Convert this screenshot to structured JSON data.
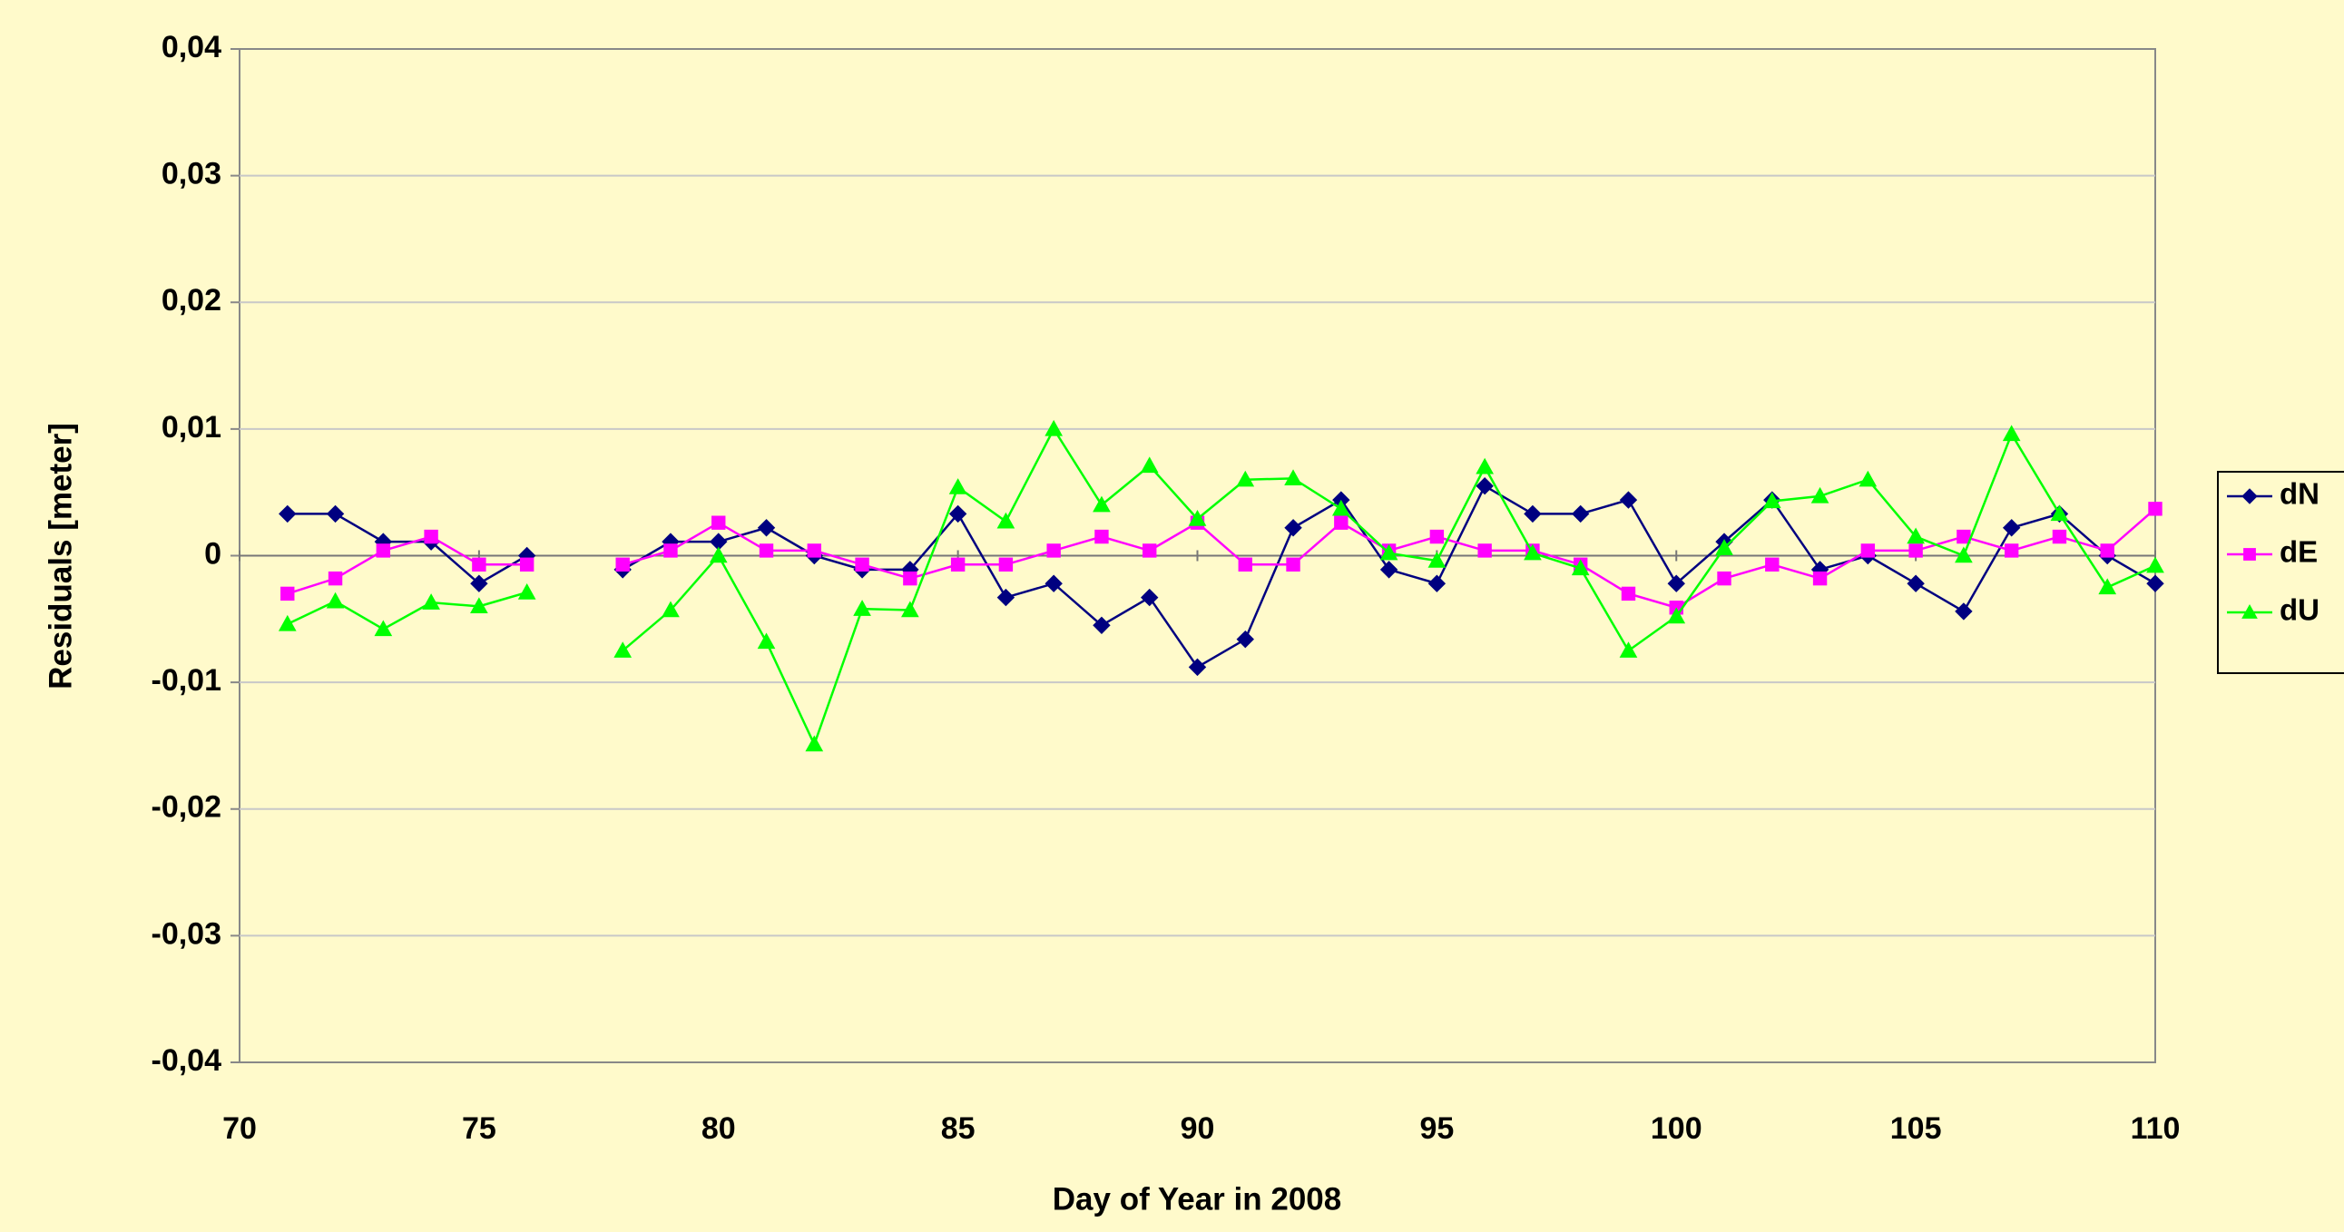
{
  "chart_data": {
    "type": "line",
    "xlabel": "Day of Year in 2008",
    "ylabel": "Residuals [meter]",
    "x": [
      71,
      72,
      73,
      74,
      75,
      76,
      77,
      78,
      79,
      80,
      81,
      82,
      83,
      84,
      85,
      86,
      87,
      88,
      89,
      90,
      91,
      92,
      93,
      94,
      95,
      96,
      97,
      98,
      99,
      100,
      101,
      102,
      103,
      104,
      105,
      106,
      107,
      108,
      109,
      110
    ],
    "series": [
      {
        "name": "dN",
        "color": "#000080",
        "marker": "diamond",
        "values": [
          0.0033,
          0.0033,
          0.0011,
          0.0011,
          -0.0022,
          0,
          null,
          -0.0011,
          0.0011,
          0.0011,
          0.0022,
          0,
          -0.0011,
          -0.0011,
          0.0033,
          -0.0033,
          -0.0022,
          -0.0055,
          -0.0033,
          -0.0088,
          -0.0066,
          0.0022,
          0.0044,
          -0.0011,
          -0.0022,
          0.0055,
          0.0033,
          0.0033,
          0.0044,
          -0.0022,
          0.0011,
          0.0044,
          -0.0011,
          0,
          -0.0022,
          -0.0044,
          0.0022,
          0.0033,
          0,
          -0.0022
        ]
      },
      {
        "name": "dE",
        "color": "#ff00ff",
        "marker": "square",
        "values": [
          -0.003,
          -0.0018,
          0.0004,
          0.0015,
          -0.0007,
          -0.0007,
          null,
          -0.0007,
          0.0004,
          0.0026,
          0.0004,
          0.0004,
          -0.0007,
          -0.0018,
          -0.0007,
          -0.0007,
          0.0004,
          0.0015,
          0.0004,
          0.0026,
          -0.0007,
          -0.0007,
          0.0026,
          0.0004,
          0.0015,
          0.0004,
          0.0004,
          -0.0007,
          -0.003,
          -0.0041,
          -0.0018,
          -0.0007,
          -0.0018,
          0.0004,
          0.0004,
          0.0015,
          0.0004,
          0.0015,
          0.0004,
          0.0037
        ]
      },
      {
        "name": "dU",
        "color": "#00ff00",
        "marker": "triangle",
        "values": [
          -0.0054,
          -0.0036,
          -0.0058,
          -0.0037,
          -0.004,
          -0.0029,
          null,
          -0.0075,
          -0.0043,
          0,
          -0.0068,
          -0.0149,
          -0.0042,
          -0.0043,
          0.0054,
          0.0027,
          0.01,
          0.004,
          0.0071,
          0.0029,
          0.006,
          0.0061,
          0.0037,
          0.0002,
          -0.0004,
          0.007,
          0.0002,
          -0.001,
          -0.0075,
          -0.0048,
          0.0006,
          0.0043,
          0.0047,
          0.006,
          0.0015,
          0,
          0.0096,
          0.0033,
          -0.0025,
          -0.0008
        ]
      }
    ],
    "xlim": [
      70,
      110
    ],
    "xticks": [
      70,
      75,
      80,
      85,
      90,
      95,
      100,
      105,
      110
    ],
    "ylim": [
      -0.04,
      0.04
    ],
    "yticks": [
      {
        "value": -0.04,
        "label": "-0,04"
      },
      {
        "value": -0.03,
        "label": "-0,03"
      },
      {
        "value": -0.02,
        "label": "-0,02"
      },
      {
        "value": -0.01,
        "label": "-0,01"
      },
      0,
      {
        "value": 0.01,
        "label": "0,01"
      },
      {
        "value": 0.02,
        "label": "0,02"
      },
      {
        "value": 0.03,
        "label": "0,03"
      },
      {
        "value": 0.04,
        "label": "0,04"
      }
    ],
    "grid": true,
    "legend": "right"
  }
}
